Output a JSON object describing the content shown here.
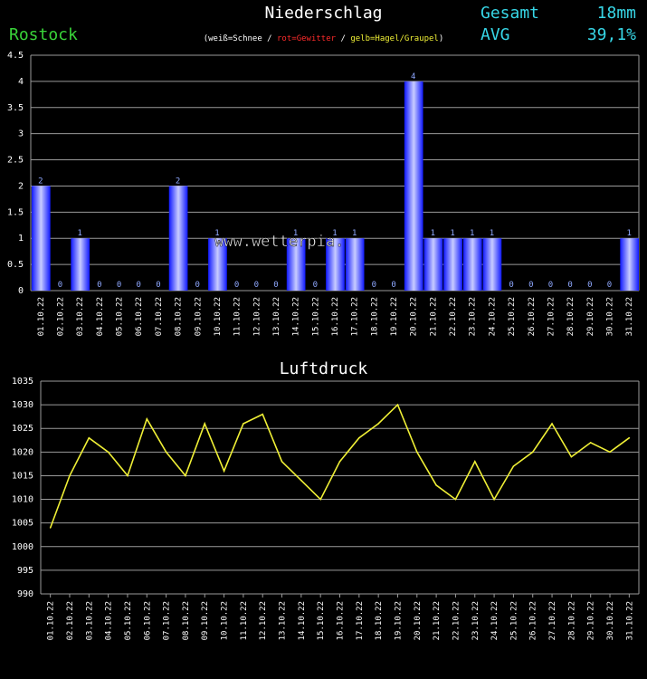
{
  "header": {
    "title": "Niederschlag",
    "station": "Rostock",
    "legend": {
      "open": "(",
      "snow": "weiß=Schnee",
      "sep1": " / ",
      "thunder": "rot=Gewitter",
      "sep2": " / ",
      "hail": "gelb=Hagel/Graupel",
      "close": ")"
    },
    "total_label": "Gesamt",
    "total_value": "18mm",
    "avg_label": "AVG",
    "avg_value": "39,1%"
  },
  "watermark": "www.wetterpia.",
  "colors": {
    "background": "#000000",
    "grid": "#9a9a9a",
    "bar": "#0f18ff",
    "bar_highlight": "#c8ccff",
    "label_blue": "#8fa8ff",
    "line": "#f0f036",
    "station": "#39d339",
    "stats": "#37d6e6",
    "snow": "#ffffff",
    "thunder": "#ff2b2b",
    "hail": "#f0f036"
  },
  "chart_data": [
    {
      "type": "bar",
      "title": "Niederschlag",
      "categories": [
        "01.10.22",
        "02.10.22",
        "03.10.22",
        "04.10.22",
        "05.10.22",
        "06.10.22",
        "07.10.22",
        "08.10.22",
        "09.10.22",
        "10.10.22",
        "11.10.22",
        "12.10.22",
        "13.10.22",
        "14.10.22",
        "15.10.22",
        "16.10.22",
        "17.10.22",
        "18.10.22",
        "19.10.22",
        "20.10.22",
        "21.10.22",
        "22.10.22",
        "23.10.22",
        "24.10.22",
        "25.10.22",
        "26.10.22",
        "27.10.22",
        "28.10.22",
        "29.10.22",
        "30.10.22",
        "31.10.22"
      ],
      "values": [
        2,
        0,
        1,
        0,
        0,
        0,
        0,
        2,
        0,
        1,
        0,
        0,
        0,
        1,
        0,
        1,
        1,
        0,
        0,
        4,
        1,
        1,
        1,
        1,
        0,
        0,
        0,
        0,
        0,
        0,
        1
      ],
      "ylim": [
        0,
        4.5
      ],
      "yticks": [
        "0",
        "0.5",
        "1",
        "1.5",
        "2",
        "2.5",
        "3",
        "3.5",
        "4",
        "4.5"
      ],
      "grid": true
    },
    {
      "type": "line",
      "title": "Luftdruck",
      "categories": [
        "01.10.22",
        "02.10.22",
        "03.10.22",
        "04.10.22",
        "05.10.22",
        "06.10.22",
        "07.10.22",
        "08.10.22",
        "09.10.22",
        "10.10.22",
        "11.10.22",
        "12.10.22",
        "13.10.22",
        "14.10.22",
        "15.10.22",
        "16.10.22",
        "17.10.22",
        "18.10.22",
        "19.10.22",
        "20.10.22",
        "21.10.22",
        "22.10.22",
        "23.10.22",
        "24.10.22",
        "25.10.22",
        "26.10.22",
        "27.10.22",
        "28.10.22",
        "29.10.22",
        "30.10.22",
        "31.10.22"
      ],
      "values": [
        1004,
        1015,
        1023,
        1020,
        1015,
        1027,
        1020,
        1015,
        1026,
        1016,
        1026,
        1028,
        1018,
        1014,
        1010,
        1018,
        1023,
        1026,
        1030,
        1020,
        1013,
        1010,
        1018,
        1010,
        1017,
        1020,
        1026,
        1019,
        1022,
        1020,
        1023
      ],
      "ylim": [
        990,
        1035
      ],
      "yticks": [
        "990",
        "995",
        "1000",
        "1005",
        "1010",
        "1015",
        "1020",
        "1025",
        "1030",
        "1035"
      ],
      "grid": true
    }
  ]
}
